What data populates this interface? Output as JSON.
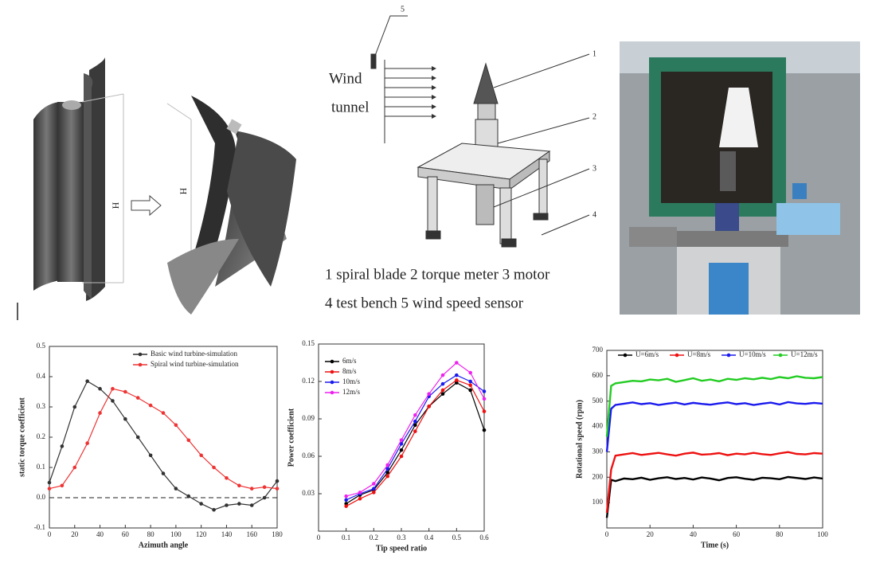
{
  "diagram": {
    "height_labels": [
      "H",
      "H"
    ],
    "schematic": {
      "wind_label": "Wind",
      "tunnel_label": "tunnel",
      "callouts": [
        "1",
        "2",
        "3",
        "4",
        "5"
      ],
      "caption": [
        "1 spiral blade 2 torque meter 3 motor",
        "4 test bench 5 wind speed sensor"
      ]
    }
  },
  "chart_data": [
    {
      "type": "line",
      "xlabel": "Azimuth angle",
      "ylabel": "static torque coefficient",
      "x": [
        0,
        10,
        20,
        30,
        40,
        50,
        60,
        70,
        80,
        90,
        100,
        110,
        120,
        130,
        140,
        150,
        160,
        170,
        180
      ],
      "series": [
        {
          "name": "Basic wind turbine-simulation",
          "color": "#333333",
          "values": [
            0.05,
            0.17,
            0.3,
            0.385,
            0.36,
            0.32,
            0.26,
            0.2,
            0.14,
            0.08,
            0.03,
            0.005,
            -0.02,
            -0.04,
            -0.025,
            -0.02,
            -0.025,
            0,
            0.055
          ]
        },
        {
          "name": "Spiral wind turbine-simulation",
          "color": "#ee3333",
          "values": [
            0.03,
            0.04,
            0.1,
            0.18,
            0.28,
            0.36,
            0.35,
            0.33,
            0.305,
            0.28,
            0.24,
            0.19,
            0.14,
            0.1,
            0.065,
            0.04,
            0.03,
            0.035,
            0.03
          ]
        }
      ],
      "xlim": [
        0,
        180
      ],
      "xticks": [
        0,
        20,
        40,
        60,
        80,
        100,
        120,
        140,
        160,
        180
      ],
      "ylim": [
        -0.1,
        0.5
      ],
      "yticks": [
        -0.1,
        {
          "value": 0,
          "label": "0.0"
        },
        0.1,
        0.2,
        0.3,
        0.4,
        0.5
      ],
      "hline": 0,
      "markers": true,
      "legend": "upper right"
    },
    {
      "type": "line",
      "xlabel": "Tip speed ratio",
      "ylabel": "Power coefficient",
      "x": [
        0.1,
        0.15,
        0.2,
        0.25,
        0.3,
        0.35,
        0.4,
        0.45,
        0.5,
        0.55,
        0.6
      ],
      "series": [
        {
          "name": "6m/s",
          "color": "#000000",
          "values": [
            0.022,
            0.029,
            0.033,
            0.047,
            0.065,
            0.085,
            0.1,
            0.11,
            0.119,
            0.113,
            0.081
          ]
        },
        {
          "name": "8m/s",
          "color": "#ee1111",
          "values": [
            0.02,
            0.026,
            0.031,
            0.044,
            0.06,
            0.08,
            0.1,
            0.113,
            0.121,
            0.117,
            0.096
          ]
        },
        {
          "name": "10m/s",
          "color": "#1a1aee",
          "values": [
            0.025,
            0.03,
            0.034,
            0.05,
            0.07,
            0.088,
            0.108,
            0.118,
            0.125,
            0.12,
            0.112
          ]
        },
        {
          "name": "12m/s",
          "color": "#ee22ee",
          "values": [
            0.028,
            0.031,
            0.038,
            0.053,
            0.073,
            0.093,
            0.11,
            0.125,
            0.135,
            0.127,
            0.106
          ]
        }
      ],
      "xlim": [
        0,
        0.6
      ],
      "xticks": [
        0,
        0.1,
        0.2,
        0.3,
        0.4,
        0.5,
        0.6
      ],
      "ylim": [
        0,
        0.15
      ],
      "yticks": [
        0.03,
        0.06,
        0.09,
        0.12,
        0.15
      ],
      "markers": true,
      "legend": "upper left"
    },
    {
      "type": "line",
      "xlabel": "Time (s)",
      "ylabel": "Rotational speed (rpm)",
      "x": [
        0,
        2,
        4,
        8,
        12,
        16,
        20,
        24,
        28,
        32,
        36,
        40,
        44,
        48,
        52,
        56,
        60,
        64,
        68,
        72,
        76,
        80,
        84,
        88,
        92,
        96,
        100
      ],
      "series": [
        {
          "name": "U=6m/s",
          "color": "#000000",
          "values": [
            40,
            190,
            185,
            195,
            192,
            198,
            190,
            196,
            200,
            193,
            197,
            191,
            199,
            195,
            188,
            197,
            200,
            194,
            190,
            198,
            196,
            192,
            201,
            197,
            193,
            199,
            195
          ]
        },
        {
          "name": "U=8m/s",
          "color": "#ee1111",
          "values": [
            60,
            230,
            285,
            290,
            295,
            288,
            292,
            296,
            290,
            285,
            293,
            297,
            289,
            291,
            295,
            287,
            293,
            290,
            296,
            291,
            288,
            294,
            299,
            292,
            290,
            295,
            293
          ]
        },
        {
          "name": "U=10m/s",
          "color": "#1a1aee",
          "values": [
            300,
            470,
            485,
            490,
            495,
            488,
            492,
            485,
            490,
            494,
            487,
            493,
            489,
            486,
            491,
            495,
            488,
            492,
            485,
            490,
            494,
            487,
            496,
            491,
            489,
            493,
            490
          ]
        },
        {
          "name": "U=12m/s",
          "color": "#22cc22",
          "values": [
            360,
            560,
            570,
            575,
            580,
            578,
            585,
            582,
            588,
            576,
            583,
            590,
            580,
            585,
            578,
            588,
            584,
            590,
            586,
            592,
            587,
            595,
            590,
            598,
            592,
            590,
            595
          ]
        }
      ],
      "xlim": [
        0,
        100
      ],
      "xticks": [
        0,
        20,
        40,
        60,
        80,
        100
      ],
      "ylim": [
        0,
        700
      ],
      "yticks": [
        100,
        200,
        300,
        400,
        500,
        600,
        700
      ],
      "markers": false,
      "legend": "top"
    }
  ]
}
